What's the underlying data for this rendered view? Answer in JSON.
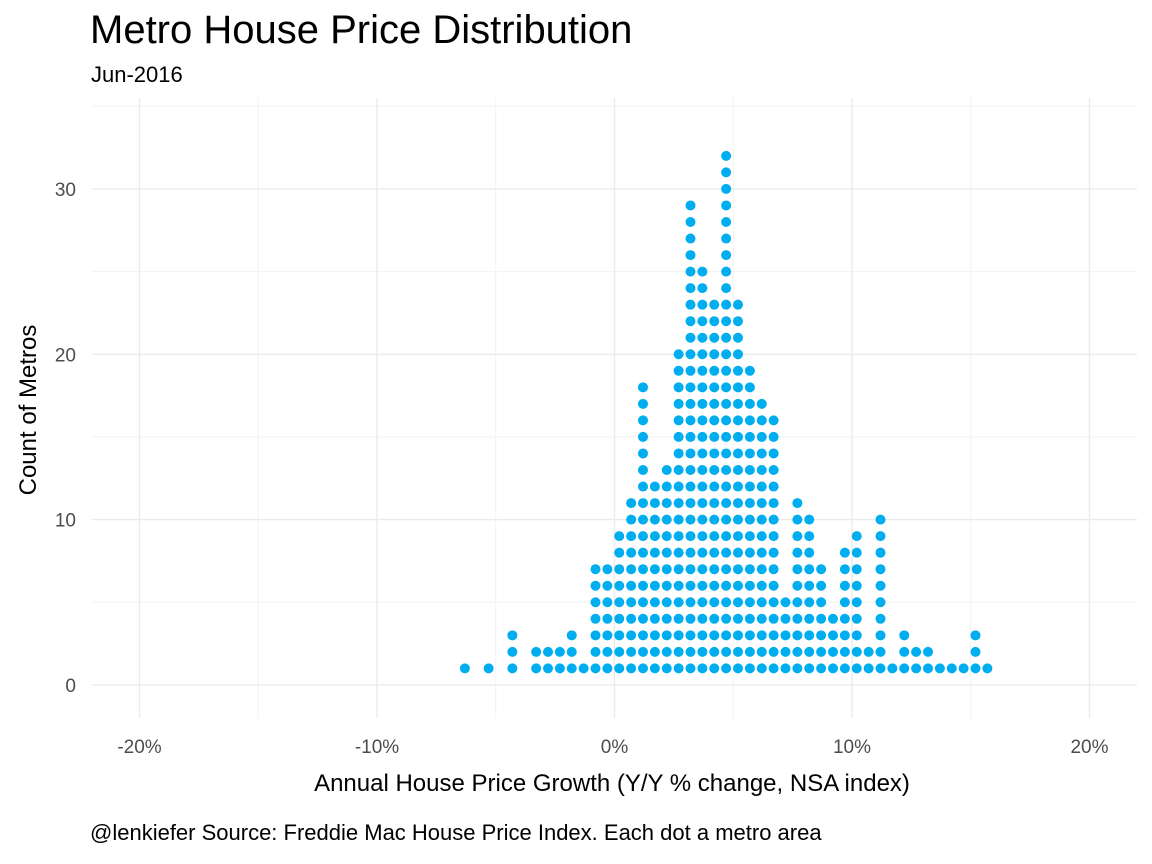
{
  "title": "Metro House Price Distribution",
  "subtitle": "Jun-2016",
  "caption": "@lenkiefer Source: Freddie Mac House Price Index. Each dot a metro area",
  "dot_color": "#00aeef",
  "chart_data": {
    "type": "dotplot",
    "xlabel": "Annual House Price Growth (Y/Y % change, NSA index)",
    "ylabel": "Count of Metros",
    "xlim": [
      -22,
      22
    ],
    "ylim": [
      -2,
      35.5
    ],
    "x_ticks": [
      -20,
      -10,
      0,
      10,
      20
    ],
    "x_tick_labels": [
      "-20%",
      "-10%",
      "0%",
      "10%",
      "20%"
    ],
    "y_ticks": [
      0,
      10,
      20,
      30
    ],
    "y_tick_labels": [
      "0",
      "10",
      "20",
      "30"
    ],
    "grid": true,
    "bins_x": [
      -6.3,
      -5.3,
      -4.3,
      -3.3,
      -2.8,
      -2.3,
      -1.8,
      -1.3,
      -0.8,
      -0.3,
      0.2,
      0.7,
      1.2,
      1.7,
      2.2,
      2.7,
      3.2,
      3.7,
      4.2,
      4.7,
      5.2,
      5.7,
      6.2,
      6.7,
      7.2,
      7.7,
      8.2,
      8.7,
      9.2,
      9.7,
      10.2,
      10.7,
      11.2,
      11.7,
      12.2,
      12.7,
      13.2,
      13.7,
      14.2,
      14.7,
      15.2,
      15.7
    ],
    "counts": [
      1,
      1,
      3,
      2,
      2,
      2,
      3,
      1,
      7,
      7,
      9,
      11,
      18,
      12,
      13,
      20,
      29,
      25,
      23,
      32,
      23,
      19,
      17,
      16,
      5,
      11,
      10,
      7,
      4,
      8,
      9,
      2,
      10,
      1,
      3,
      2,
      2,
      1,
      1,
      1,
      3,
      1
    ]
  }
}
